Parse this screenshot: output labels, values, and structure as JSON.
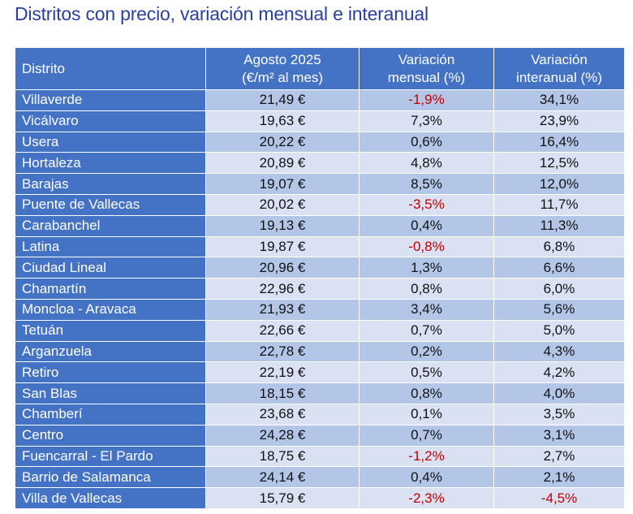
{
  "title": "Distritos con precio, variación mensual e interanual",
  "colors": {
    "header_bg": "#4472c4",
    "row_alt_1": "#b4c6e7",
    "row_alt_2": "#d9e1f2",
    "negative": "#c00000",
    "title": "#2a3f9e"
  },
  "chart_data": {
    "type": "table",
    "columns": [
      {
        "lines": [
          "Distrito"
        ]
      },
      {
        "lines": [
          "Agosto 2025",
          "(€/m² al mes)"
        ]
      },
      {
        "lines": [
          "Variación",
          "mensual (%)"
        ]
      },
      {
        "lines": [
          "Variación",
          "interanual (%)"
        ]
      }
    ],
    "rows": [
      [
        "Villaverde",
        "21,49 €",
        "-1,9%",
        "34,1%"
      ],
      [
        "Vicálvaro",
        "19,63 €",
        "7,3%",
        "23,9%"
      ],
      [
        "Usera",
        "20,22 €",
        "0,6%",
        "16,4%"
      ],
      [
        "Hortaleza",
        "20,89 €",
        "4,8%",
        "12,5%"
      ],
      [
        "Barajas",
        "19,07 €",
        "8,5%",
        "12,0%"
      ],
      [
        "Puente de Vallecas",
        "20,02 €",
        "-3,5%",
        "11,7%"
      ],
      [
        "Carabanchel",
        "19,13 €",
        "0,4%",
        "11,3%"
      ],
      [
        "Latina",
        "19,87 €",
        "-0,8%",
        "6,8%"
      ],
      [
        "Ciudad Lineal",
        "20,96 €",
        "1,3%",
        "6,6%"
      ],
      [
        "Chamartín",
        "22,96 €",
        "0,8%",
        "6,0%"
      ],
      [
        "Moncloa - Aravaca",
        "21,93 €",
        "3,4%",
        "5,6%"
      ],
      [
        "Tetuán",
        "22,66 €",
        "0,7%",
        "5,0%"
      ],
      [
        "Arganzuela",
        "22,78 €",
        "0,2%",
        "4,3%"
      ],
      [
        "Retiro",
        "22,19 €",
        "0,5%",
        "4,2%"
      ],
      [
        "San Blas",
        "18,15 €",
        "0,8%",
        "4,0%"
      ],
      [
        "Chamberí",
        "23,68 €",
        "0,1%",
        "3,5%"
      ],
      [
        "Centro",
        "24,28 €",
        "0,7%",
        "3,1%"
      ],
      [
        "Fuencarral - El Pardo",
        "18,75 €",
        "-1,2%",
        "2,7%"
      ],
      [
        "Barrio de Salamanca",
        "24,14 €",
        "0,4%",
        "2,1%"
      ],
      [
        "Villa de Vallecas",
        "15,79 €",
        "-2,3%",
        "-4,5%"
      ]
    ]
  }
}
